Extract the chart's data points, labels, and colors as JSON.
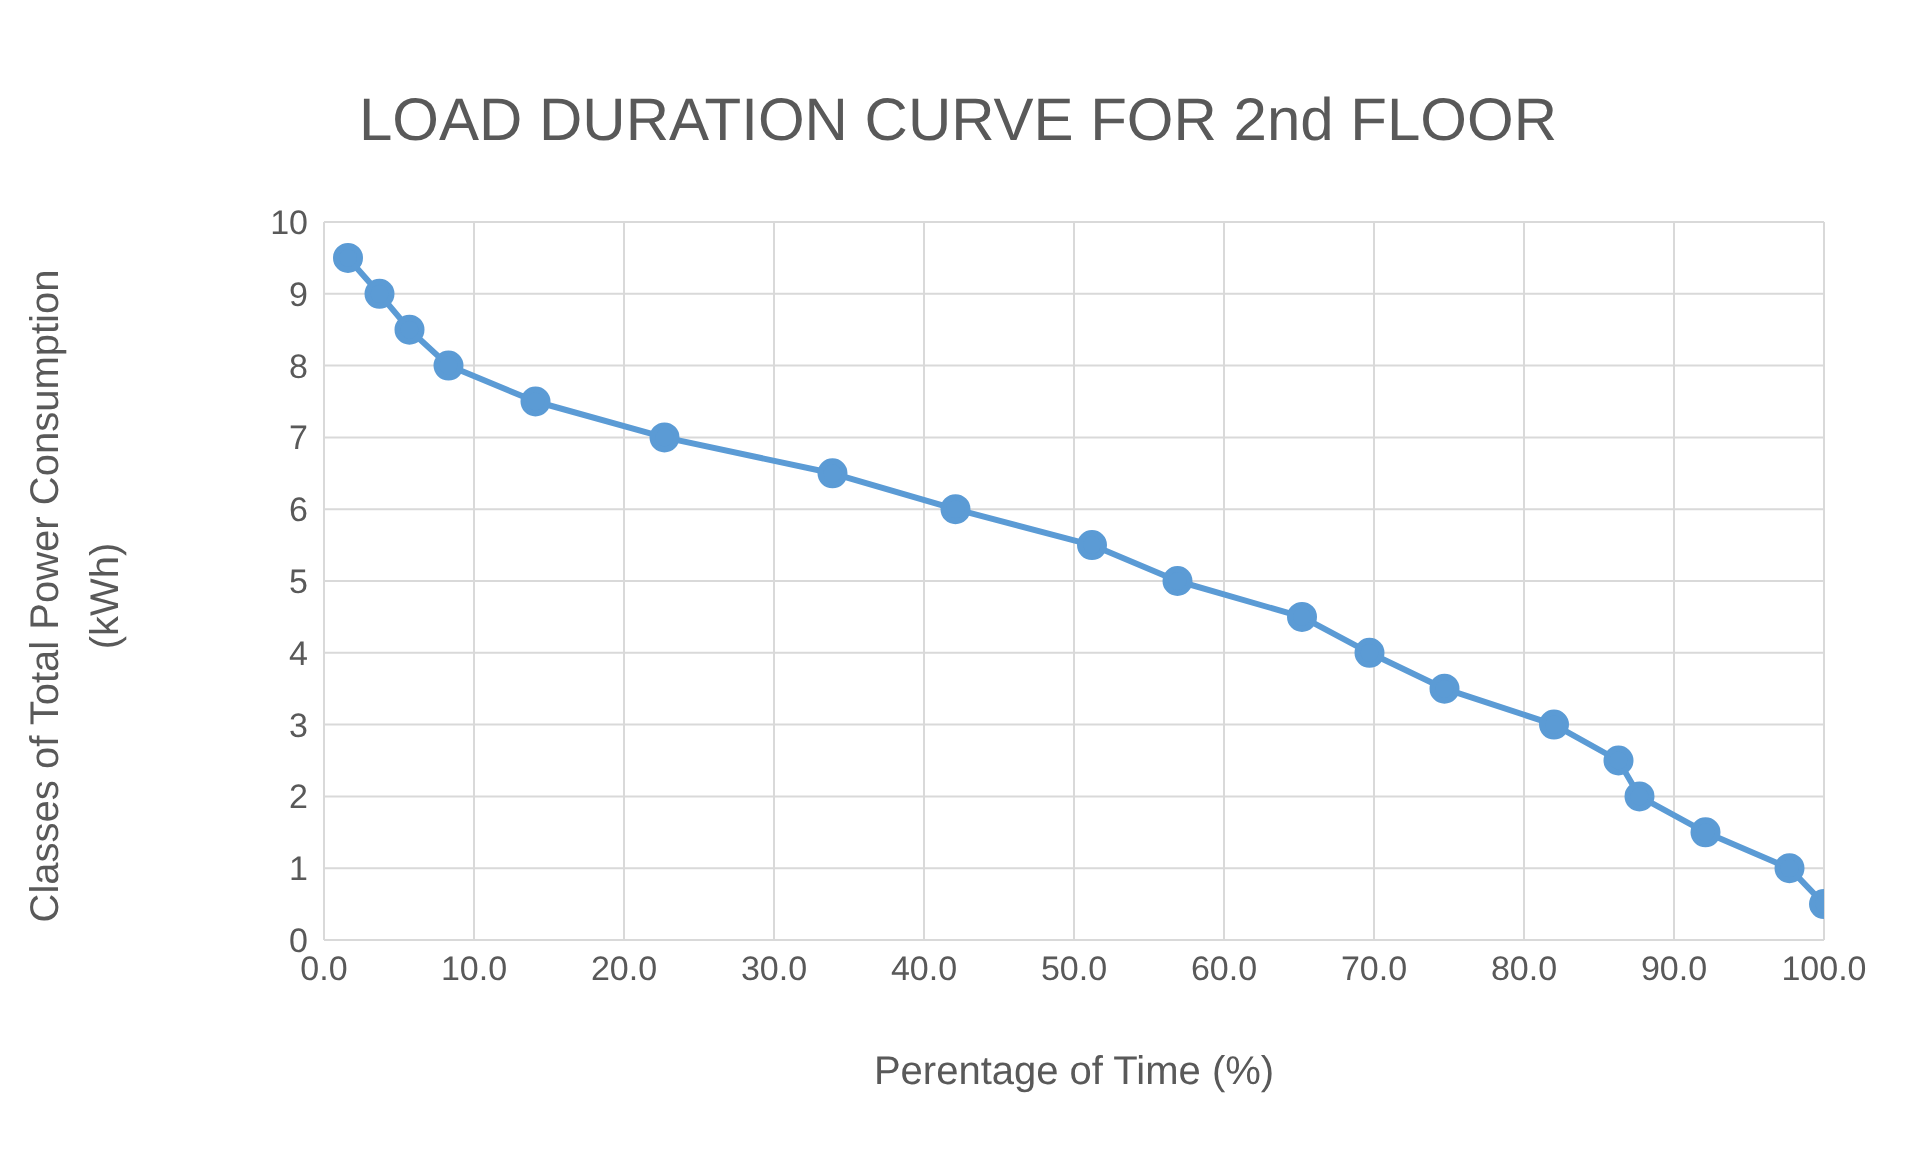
{
  "chart_data": {
    "type": "line",
    "title": "LOAD DURATION CURVE FOR 2nd FLOOR",
    "xlabel": "Perentage of Time (%)",
    "ylabel": "Classes of Total Power Consumption (kWh)",
    "x": [
      1.6,
      3.7,
      5.7,
      8.3,
      14.1,
      22.7,
      33.9,
      42.1,
      51.2,
      56.9,
      65.2,
      69.7,
      74.7,
      82.0,
      86.3,
      87.7,
      92.1,
      97.7,
      100
    ],
    "series": [
      {
        "color": "#5b9bd5",
        "values": [
          9.5,
          9,
          8.5,
          8,
          7.5,
          7,
          6.5,
          6,
          5.5,
          5,
          4.5,
          4,
          3.5,
          3,
          2.5,
          2,
          1.5,
          1,
          0.5
        ]
      }
    ],
    "xlim": [
      0,
      100
    ],
    "xticks": [
      {
        "value": 0,
        "label": "0.0"
      },
      {
        "value": 10,
        "label": "10.0"
      },
      {
        "value": 20,
        "label": "20.0"
      },
      {
        "value": 30,
        "label": "30.0"
      },
      {
        "value": 40,
        "label": "40.0"
      },
      {
        "value": 50,
        "label": "50.0"
      },
      {
        "value": 60,
        "label": "60.0"
      },
      {
        "value": 70,
        "label": "70.0"
      },
      {
        "value": 80,
        "label": "80.0"
      },
      {
        "value": 90,
        "label": "90.0"
      },
      {
        "value": 100,
        "label": "100.0"
      }
    ],
    "ylim": [
      0,
      10
    ],
    "yticks": [
      0,
      1,
      2,
      3,
      4,
      5,
      6,
      7,
      8,
      9,
      10
    ],
    "grid": true,
    "marker": "circle",
    "line_style": "solid",
    "legend": false
  }
}
